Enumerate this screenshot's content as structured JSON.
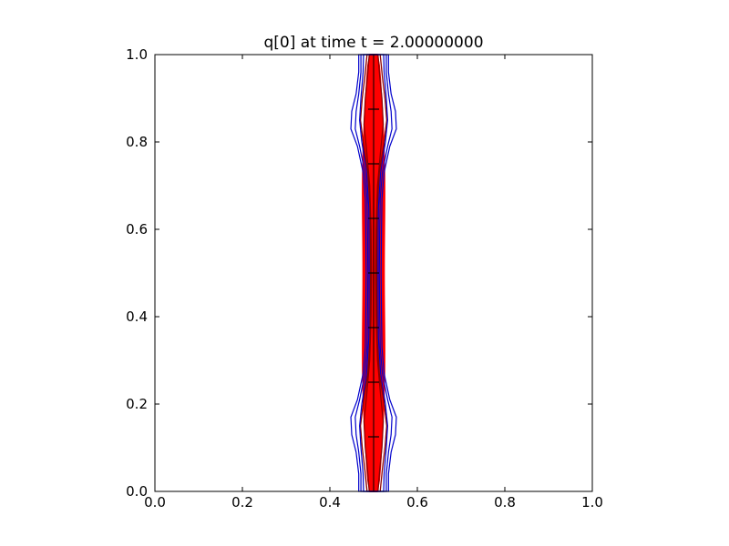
{
  "chart_data": {
    "type": "contour",
    "title": "q[0] at time t =     2.00000000",
    "xlabel": "",
    "ylabel": "",
    "xlim": [
      0.0,
      1.0
    ],
    "ylim": [
      0.0,
      1.0
    ],
    "x_ticks": [
      0.0,
      0.2,
      0.4,
      0.6,
      0.8,
      1.0
    ],
    "x_tick_labels": [
      "0.0",
      "0.2",
      "0.4",
      "0.6",
      "0.8",
      "1.0"
    ],
    "y_ticks": [
      0.0,
      0.2,
      0.4,
      0.6,
      0.8,
      1.0
    ],
    "y_tick_labels": [
      "0.0",
      "0.2",
      "0.4",
      "0.6",
      "0.8",
      "1.0"
    ],
    "grid": false,
    "legend": "none",
    "center_x": 0.5,
    "colors": {
      "blue_contours": "#0000cc",
      "red_contours": "#ff0000",
      "dark_red_contours": "#8b0000",
      "patch_lines": "#000000"
    },
    "blue_contours": [
      {
        "x_at_y": [
          [
            0.0,
            0.466
          ],
          [
            0.04,
            0.466
          ],
          [
            0.09,
            0.46
          ],
          [
            0.13,
            0.45
          ],
          [
            0.17,
            0.448
          ],
          [
            0.21,
            0.463
          ],
          [
            0.27,
            0.476
          ],
          [
            0.33,
            0.481
          ],
          [
            0.4,
            0.482
          ],
          [
            0.5,
            0.483
          ],
          [
            0.6,
            0.482
          ],
          [
            0.67,
            0.481
          ],
          [
            0.73,
            0.476
          ],
          [
            0.79,
            0.463
          ],
          [
            0.83,
            0.448
          ],
          [
            0.87,
            0.45
          ],
          [
            0.91,
            0.46
          ],
          [
            0.96,
            0.466
          ],
          [
            1.0,
            0.466
          ]
        ]
      },
      {
        "x_at_y": [
          [
            0.0,
            0.471
          ],
          [
            0.04,
            0.471
          ],
          [
            0.09,
            0.466
          ],
          [
            0.13,
            0.46
          ],
          [
            0.17,
            0.458
          ],
          [
            0.21,
            0.468
          ],
          [
            0.27,
            0.48
          ],
          [
            0.33,
            0.485
          ],
          [
            0.4,
            0.486
          ],
          [
            0.5,
            0.487
          ],
          [
            0.6,
            0.486
          ],
          [
            0.67,
            0.485
          ],
          [
            0.73,
            0.48
          ],
          [
            0.79,
            0.468
          ],
          [
            0.83,
            0.458
          ],
          [
            0.87,
            0.46
          ],
          [
            0.91,
            0.466
          ],
          [
            0.96,
            0.471
          ],
          [
            1.0,
            0.471
          ]
        ]
      },
      {
        "x_at_y": [
          [
            0.0,
            0.477
          ],
          [
            0.04,
            0.476
          ],
          [
            0.1,
            0.471
          ],
          [
            0.15,
            0.468
          ],
          [
            0.2,
            0.473
          ],
          [
            0.27,
            0.484
          ],
          [
            0.35,
            0.489
          ],
          [
            0.5,
            0.49
          ],
          [
            0.65,
            0.489
          ],
          [
            0.73,
            0.484
          ],
          [
            0.8,
            0.473
          ],
          [
            0.85,
            0.468
          ],
          [
            0.9,
            0.471
          ],
          [
            0.96,
            0.476
          ],
          [
            1.0,
            0.477
          ]
        ]
      }
    ],
    "dark_red_contours": [
      {
        "x_at_y": [
          [
            0.0,
            0.485
          ],
          [
            0.05,
            0.48
          ],
          [
            0.1,
            0.474
          ],
          [
            0.15,
            0.47
          ],
          [
            0.2,
            0.476
          ],
          [
            0.27,
            0.487
          ],
          [
            0.35,
            0.492
          ],
          [
            0.5,
            0.493
          ],
          [
            0.65,
            0.492
          ],
          [
            0.73,
            0.487
          ],
          [
            0.8,
            0.476
          ],
          [
            0.85,
            0.47
          ],
          [
            0.9,
            0.474
          ],
          [
            0.95,
            0.48
          ],
          [
            1.0,
            0.485
          ]
        ]
      },
      {
        "x_at_y": [
          [
            0.0,
            0.49
          ],
          [
            0.05,
            0.486
          ],
          [
            0.1,
            0.481
          ],
          [
            0.16,
            0.478
          ],
          [
            0.22,
            0.484
          ],
          [
            0.3,
            0.491
          ],
          [
            0.4,
            0.494
          ],
          [
            0.5,
            0.495
          ],
          [
            0.6,
            0.494
          ],
          [
            0.7,
            0.491
          ],
          [
            0.78,
            0.484
          ],
          [
            0.84,
            0.478
          ],
          [
            0.9,
            0.481
          ],
          [
            0.95,
            0.486
          ],
          [
            1.0,
            0.49
          ]
        ]
      }
    ],
    "red_contour_offsets": [
      0.002,
      0.004,
      0.006,
      0.008,
      0.01,
      0.012,
      0.014,
      0.016,
      0.018,
      0.02,
      0.022,
      0.024
    ],
    "patch_y_marks": [
      0.125,
      0.25,
      0.375,
      0.5,
      0.625,
      0.75,
      0.875
    ],
    "patch_half_width": 0.0125
  }
}
